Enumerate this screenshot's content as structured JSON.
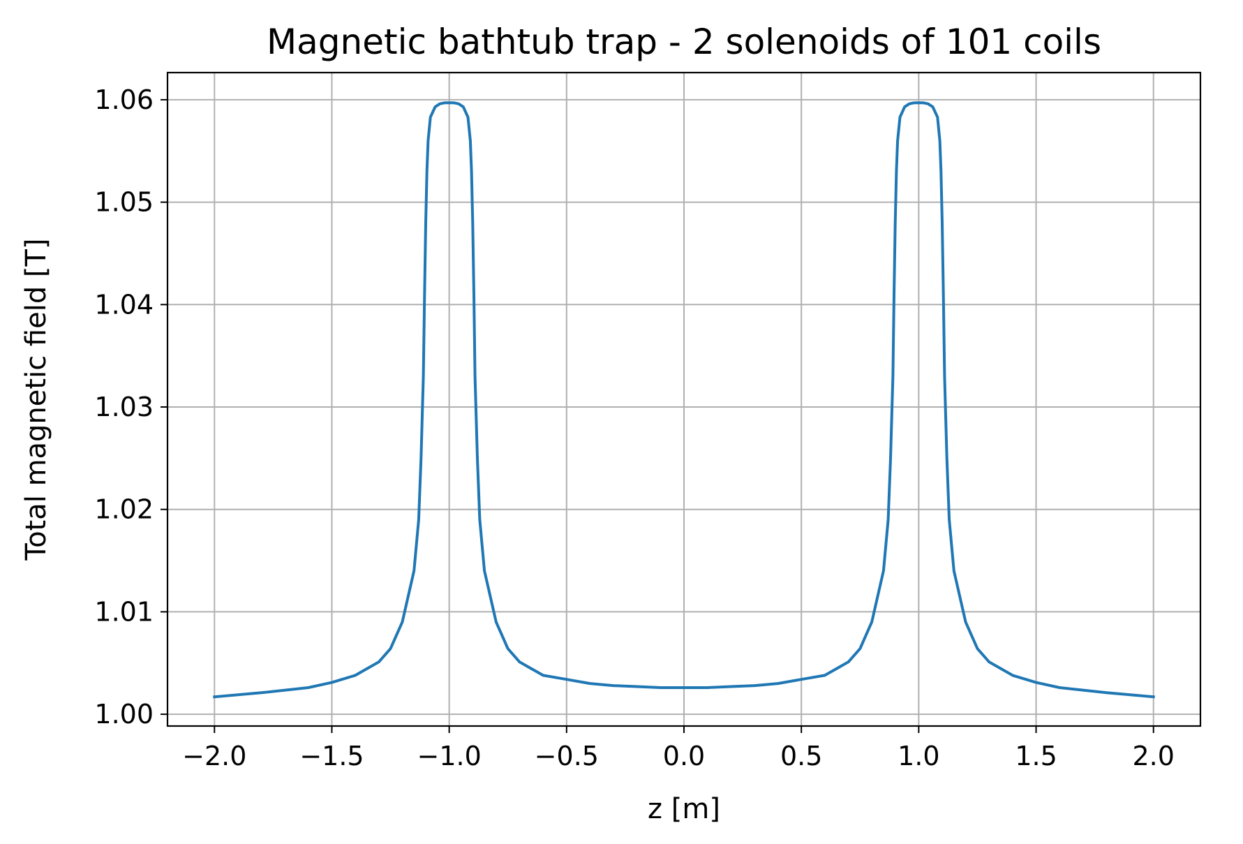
{
  "chart_data": {
    "type": "line",
    "title": "Magnetic bathtub trap - 2 solenoids of 101 coils",
    "xlabel": "z [m]",
    "ylabel": "Total magnetic field [T]",
    "xlim": [
      -2.2,
      2.2
    ],
    "ylim": [
      0.99885,
      1.06265
    ],
    "xticks": [
      -2.0,
      -1.5,
      -1.0,
      -0.5,
      0.0,
      0.5,
      1.0,
      1.5,
      2.0
    ],
    "xtick_labels": [
      "−2.0",
      "−1.5",
      "−1.0",
      "−0.5",
      "0.0",
      "0.5",
      "1.0",
      "1.5",
      "2.0"
    ],
    "yticks": [
      1.0,
      1.01,
      1.02,
      1.03,
      1.04,
      1.05,
      1.06
    ],
    "ytick_labels": [
      "1.00",
      "1.01",
      "1.02",
      "1.03",
      "1.04",
      "1.05",
      "1.06"
    ],
    "grid": true,
    "series": [
      {
        "color": "#1f77b4",
        "x": [
          -2.0,
          -1.8,
          -1.6,
          -1.5,
          -1.4,
          -1.3,
          -1.25,
          -1.2,
          -1.15,
          -1.13,
          -1.12,
          -1.11,
          -1.105,
          -1.1,
          -1.098,
          -1.095,
          -1.09,
          -1.08,
          -1.06,
          -1.04,
          -1.02,
          -1.0,
          -0.98,
          -0.96,
          -0.94,
          -0.92,
          -0.91,
          -0.905,
          -0.902,
          -0.9,
          -0.895,
          -0.89,
          -0.88,
          -0.87,
          -0.85,
          -0.8,
          -0.75,
          -0.7,
          -0.6,
          -0.5,
          -0.4,
          -0.3,
          -0.2,
          -0.1,
          0.0,
          0.1,
          0.2,
          0.3,
          0.4,
          0.5,
          0.6,
          0.7,
          0.75,
          0.8,
          0.85,
          0.87,
          0.88,
          0.89,
          0.895,
          0.9,
          0.902,
          0.905,
          0.91,
          0.92,
          0.94,
          0.96,
          0.98,
          1.0,
          1.02,
          1.04,
          1.06,
          1.08,
          1.09,
          1.095,
          1.098,
          1.1,
          1.105,
          1.11,
          1.12,
          1.13,
          1.15,
          1.2,
          1.25,
          1.3,
          1.4,
          1.5,
          1.6,
          1.8,
          2.0
        ],
        "y": [
          1.0017,
          1.0021,
          1.0026,
          1.0031,
          1.0038,
          1.0051,
          1.0064,
          1.009,
          1.014,
          1.019,
          1.025,
          1.033,
          1.041,
          1.048,
          1.05,
          1.053,
          1.056,
          1.0583,
          1.0593,
          1.0596,
          1.0597,
          1.0597,
          1.0597,
          1.0596,
          1.0593,
          1.0583,
          1.056,
          1.053,
          1.05,
          1.048,
          1.041,
          1.033,
          1.025,
          1.019,
          1.014,
          1.009,
          1.0064,
          1.0051,
          1.0038,
          1.0034,
          1.003,
          1.0028,
          1.0027,
          1.0026,
          1.0026,
          1.0026,
          1.0027,
          1.0028,
          1.003,
          1.0034,
          1.0038,
          1.0051,
          1.0064,
          1.009,
          1.014,
          1.019,
          1.025,
          1.033,
          1.041,
          1.048,
          1.05,
          1.053,
          1.056,
          1.0583,
          1.0593,
          1.0596,
          1.0597,
          1.0597,
          1.0597,
          1.0596,
          1.0593,
          1.0583,
          1.056,
          1.053,
          1.05,
          1.048,
          1.041,
          1.033,
          1.025,
          1.019,
          1.014,
          1.009,
          1.0064,
          1.0051,
          1.0038,
          1.0031,
          1.0026,
          1.0021,
          1.0017
        ]
      }
    ]
  }
}
